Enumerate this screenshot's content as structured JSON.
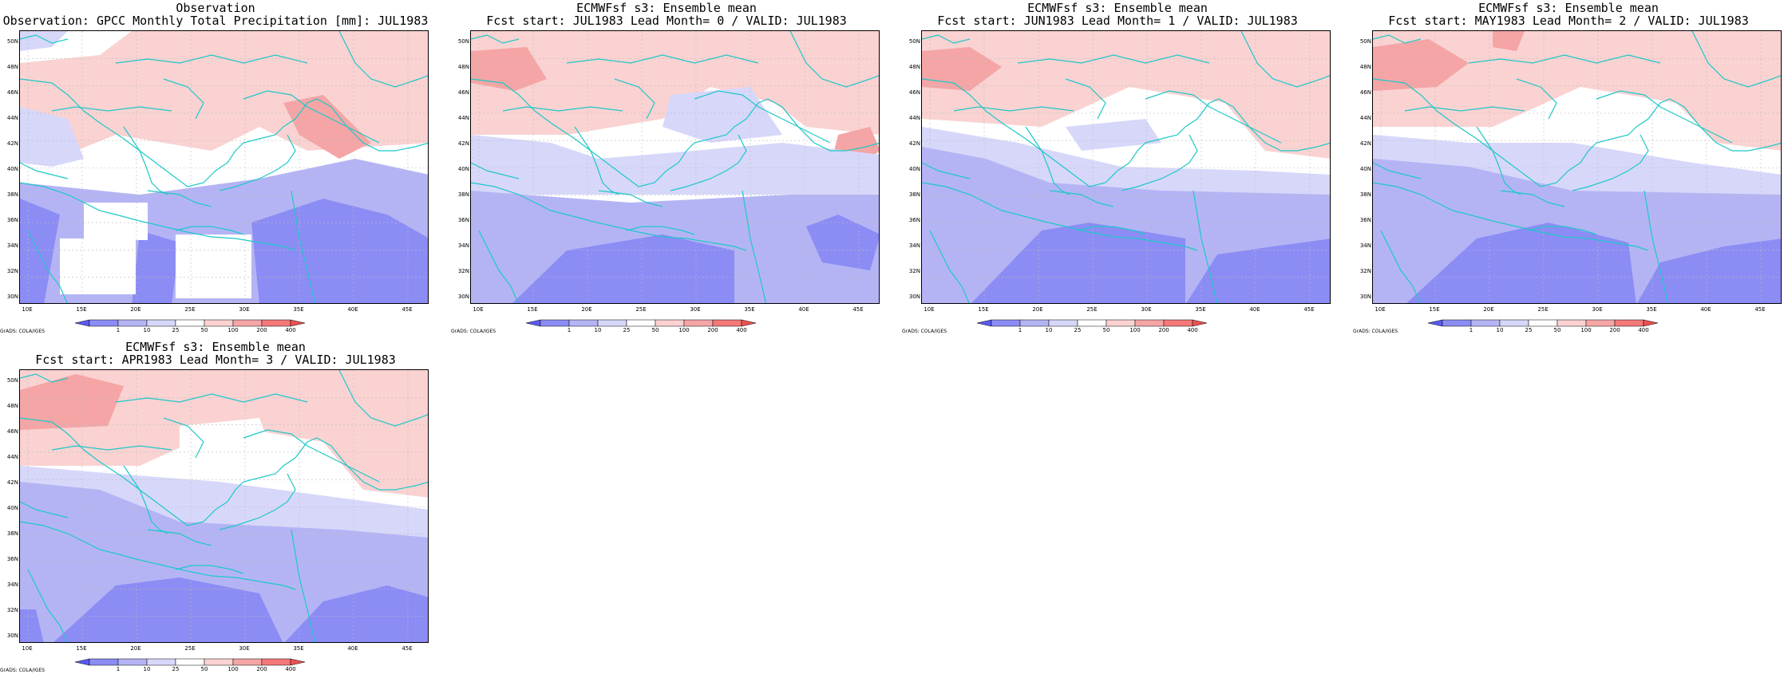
{
  "legend": {
    "labels": [
      "1",
      "10",
      "25",
      "50",
      "100",
      "200",
      "400"
    ],
    "colors": [
      "#5a5af5",
      "#8c8cf5",
      "#b4b4f5",
      "#d7d7fa",
      "#ffffff",
      "#fad2d2",
      "#f5a5a5",
      "#f57878",
      "#f05050"
    ]
  },
  "axes": {
    "lat_labels": [
      "50N",
      "48N",
      "46N",
      "44N",
      "42N",
      "40N",
      "38N",
      "36N",
      "34N",
      "32N",
      "30N"
    ],
    "lon_labels": [
      "10E",
      "15E",
      "20E",
      "25E",
      "30E",
      "35E",
      "40E",
      "45E"
    ]
  },
  "credit": "GrADS: COLA/IGES",
  "colors": {
    "coastline": "#1ec8c8",
    "gridline": "#bbbbbb"
  },
  "panels": [
    {
      "title1": "Observation",
      "title2": "Observation: GPCC Monthly Total Precipitation [mm]: JUL1983"
    },
    {
      "title1": "ECMWFsf s3: Ensemble mean",
      "title2": "Fcst start: JUL1983  Lead Month= 0 / VALID: JUL1983"
    },
    {
      "title1": "ECMWFsf s3: Ensemble mean",
      "title2": "Fcst start: JUN1983  Lead Month= 1 / VALID: JUL1983"
    },
    {
      "title1": "ECMWFsf s3: Ensemble mean",
      "title2": "Fcst start: MAY1983  Lead Month= 2 / VALID: JUL1983"
    },
    {
      "title1": "ECMWFsf s3: Ensemble mean",
      "title2": "Fcst start: APR1983  Lead Month= 3 / VALID: JUL1983"
    }
  ]
}
